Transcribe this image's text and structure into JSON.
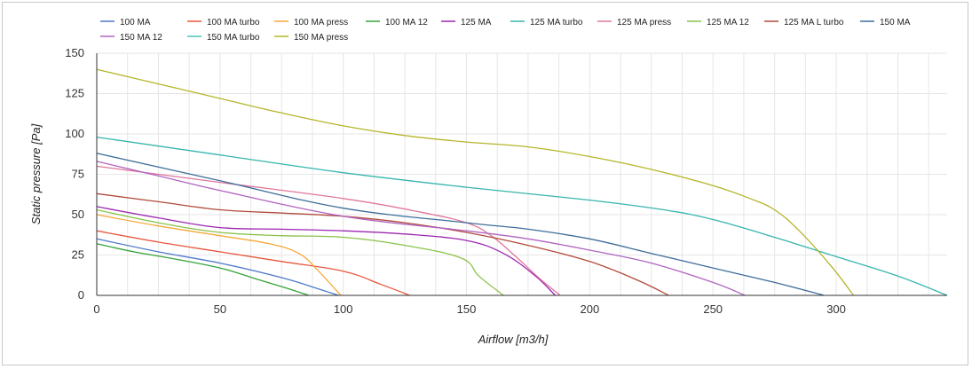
{
  "chart_data": {
    "type": "line",
    "title": "",
    "xlabel": "Airflow [m3/h]",
    "ylabel": "Static pressure [Pa]",
    "xlim": [
      0,
      345
    ],
    "ylim": [
      0,
      150
    ],
    "xticks": [
      "0",
      "50",
      "100",
      "150",
      "200",
      "250",
      "300"
    ],
    "yticks": [
      "0",
      "25",
      "50",
      "75",
      "100",
      "125",
      "150"
    ],
    "grid": true,
    "legend_position": "top",
    "series": [
      {
        "name": "100 MA",
        "color": "#4e79c9",
        "x": [
          0,
          25,
          50,
          75,
          90,
          98
        ],
        "y": [
          35,
          27,
          20,
          11,
          4,
          0
        ]
      },
      {
        "name": "100 MA turbo",
        "color": "#e8563d",
        "x": [
          0,
          25,
          50,
          75,
          100,
          115,
          127
        ],
        "y": [
          40,
          33,
          27,
          21,
          15,
          7,
          0
        ]
      },
      {
        "name": "100 MA press",
        "color": "#f5a93a",
        "x": [
          0,
          25,
          50,
          70,
          82,
          90,
          99
        ],
        "y": [
          50,
          43,
          37,
          32,
          26,
          15,
          0
        ]
      },
      {
        "name": "100 MA 12",
        "color": "#35a23a",
        "x": [
          0,
          15,
          30,
          50,
          65,
          78,
          86
        ],
        "y": [
          32,
          27,
          23,
          17,
          10,
          4,
          0
        ]
      },
      {
        "name": "125 MA",
        "color": "#9c27b0",
        "x": [
          0,
          25,
          50,
          75,
          100,
          125,
          150,
          165,
          178,
          186
        ],
        "y": [
          55,
          48,
          42,
          41,
          40,
          38,
          34,
          26,
          12,
          0
        ]
      },
      {
        "name": "125 MA turbo",
        "color": "#36b5ad",
        "x": [
          0,
          50,
          100,
          150,
          200,
          230,
          250,
          275,
          300,
          325,
          345
        ],
        "y": [
          98,
          87,
          76,
          67,
          59,
          53,
          47,
          36,
          24,
          12,
          0
        ]
      },
      {
        "name": "125 MA press",
        "color": "#e0779c",
        "x": [
          0,
          50,
          100,
          130,
          150,
          160,
          170,
          180,
          188
        ],
        "y": [
          80,
          70,
          60,
          52,
          45,
          37,
          24,
          10,
          0
        ]
      },
      {
        "name": "125 MA 12",
        "color": "#8bc34a",
        "x": [
          0,
          25,
          50,
          75,
          100,
          125,
          148,
          155,
          165
        ],
        "y": [
          53,
          45,
          39,
          37,
          36,
          31,
          23,
          12,
          0
        ]
      },
      {
        "name": "125 MA L turbo",
        "color": "#b24a3a",
        "x": [
          0,
          25,
          50,
          75,
          100,
          125,
          150,
          175,
          200,
          220,
          232
        ],
        "y": [
          63,
          58,
          53,
          51,
          49,
          45,
          39,
          31,
          21,
          9,
          0
        ]
      },
      {
        "name": "150 MA",
        "color": "#3d6e9a",
        "x": [
          0,
          50,
          100,
          150,
          175,
          200,
          225,
          250,
          275,
          295
        ],
        "y": [
          88,
          71,
          54,
          45,
          41,
          35,
          26,
          17,
          8,
          0
        ]
      },
      {
        "name": "150 MA 12",
        "color": "#b064c0",
        "x": [
          0,
          25,
          50,
          100,
          150,
          175,
          200,
          225,
          250,
          263
        ],
        "y": [
          83,
          74,
          65,
          49,
          40,
          35,
          28,
          20,
          8,
          0
        ]
      },
      {
        "name": "150 MA turbo",
        "color": "#4cc6b6",
        "x": [],
        "y": []
      },
      {
        "name": "150 MA press",
        "color": "#b5b52b",
        "x": [
          0,
          25,
          50,
          75,
          100,
          125,
          150,
          175,
          200,
          225,
          250,
          265,
          275,
          285,
          298,
          307
        ],
        "y": [
          140,
          131,
          122,
          113,
          105,
          99,
          95,
          92,
          86,
          78,
          68,
          60,
          53,
          40,
          18,
          0
        ]
      }
    ]
  }
}
